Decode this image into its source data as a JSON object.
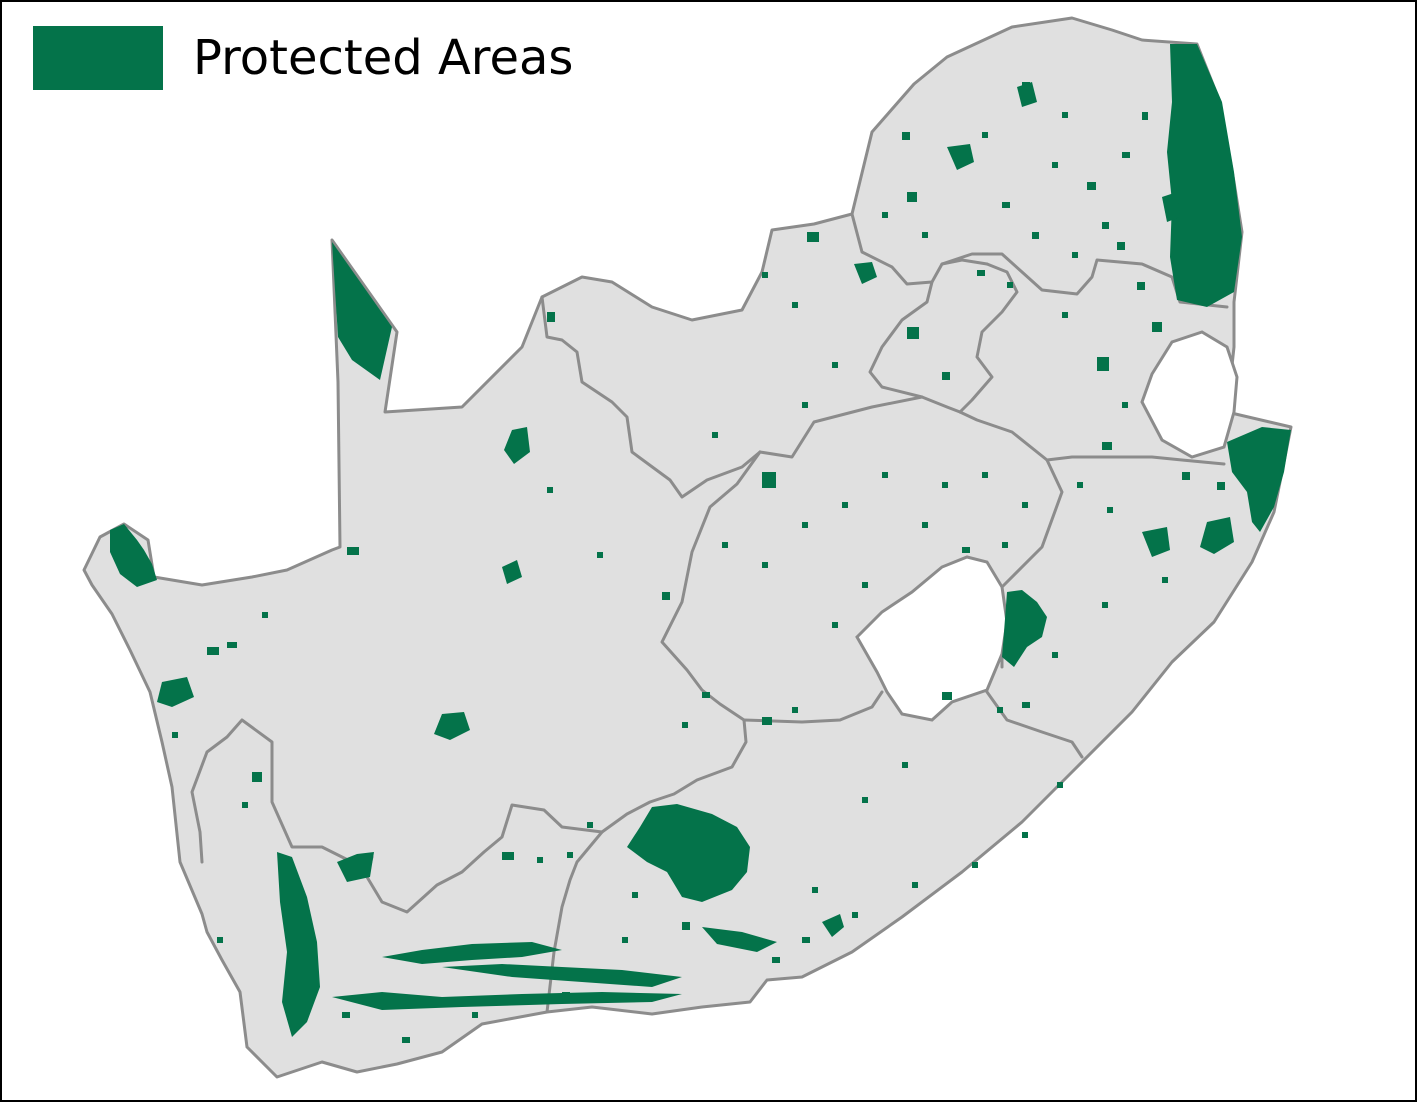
{
  "legend": {
    "label": "Protected Areas",
    "icon": "legend-swatch-icon"
  },
  "colors": {
    "protected": "#04734A",
    "land": "#E0E0E0",
    "border": "#8C8C8C",
    "enclave": "#FFFFFF",
    "background": "#FFFFFF",
    "frame": "#000000"
  }
}
